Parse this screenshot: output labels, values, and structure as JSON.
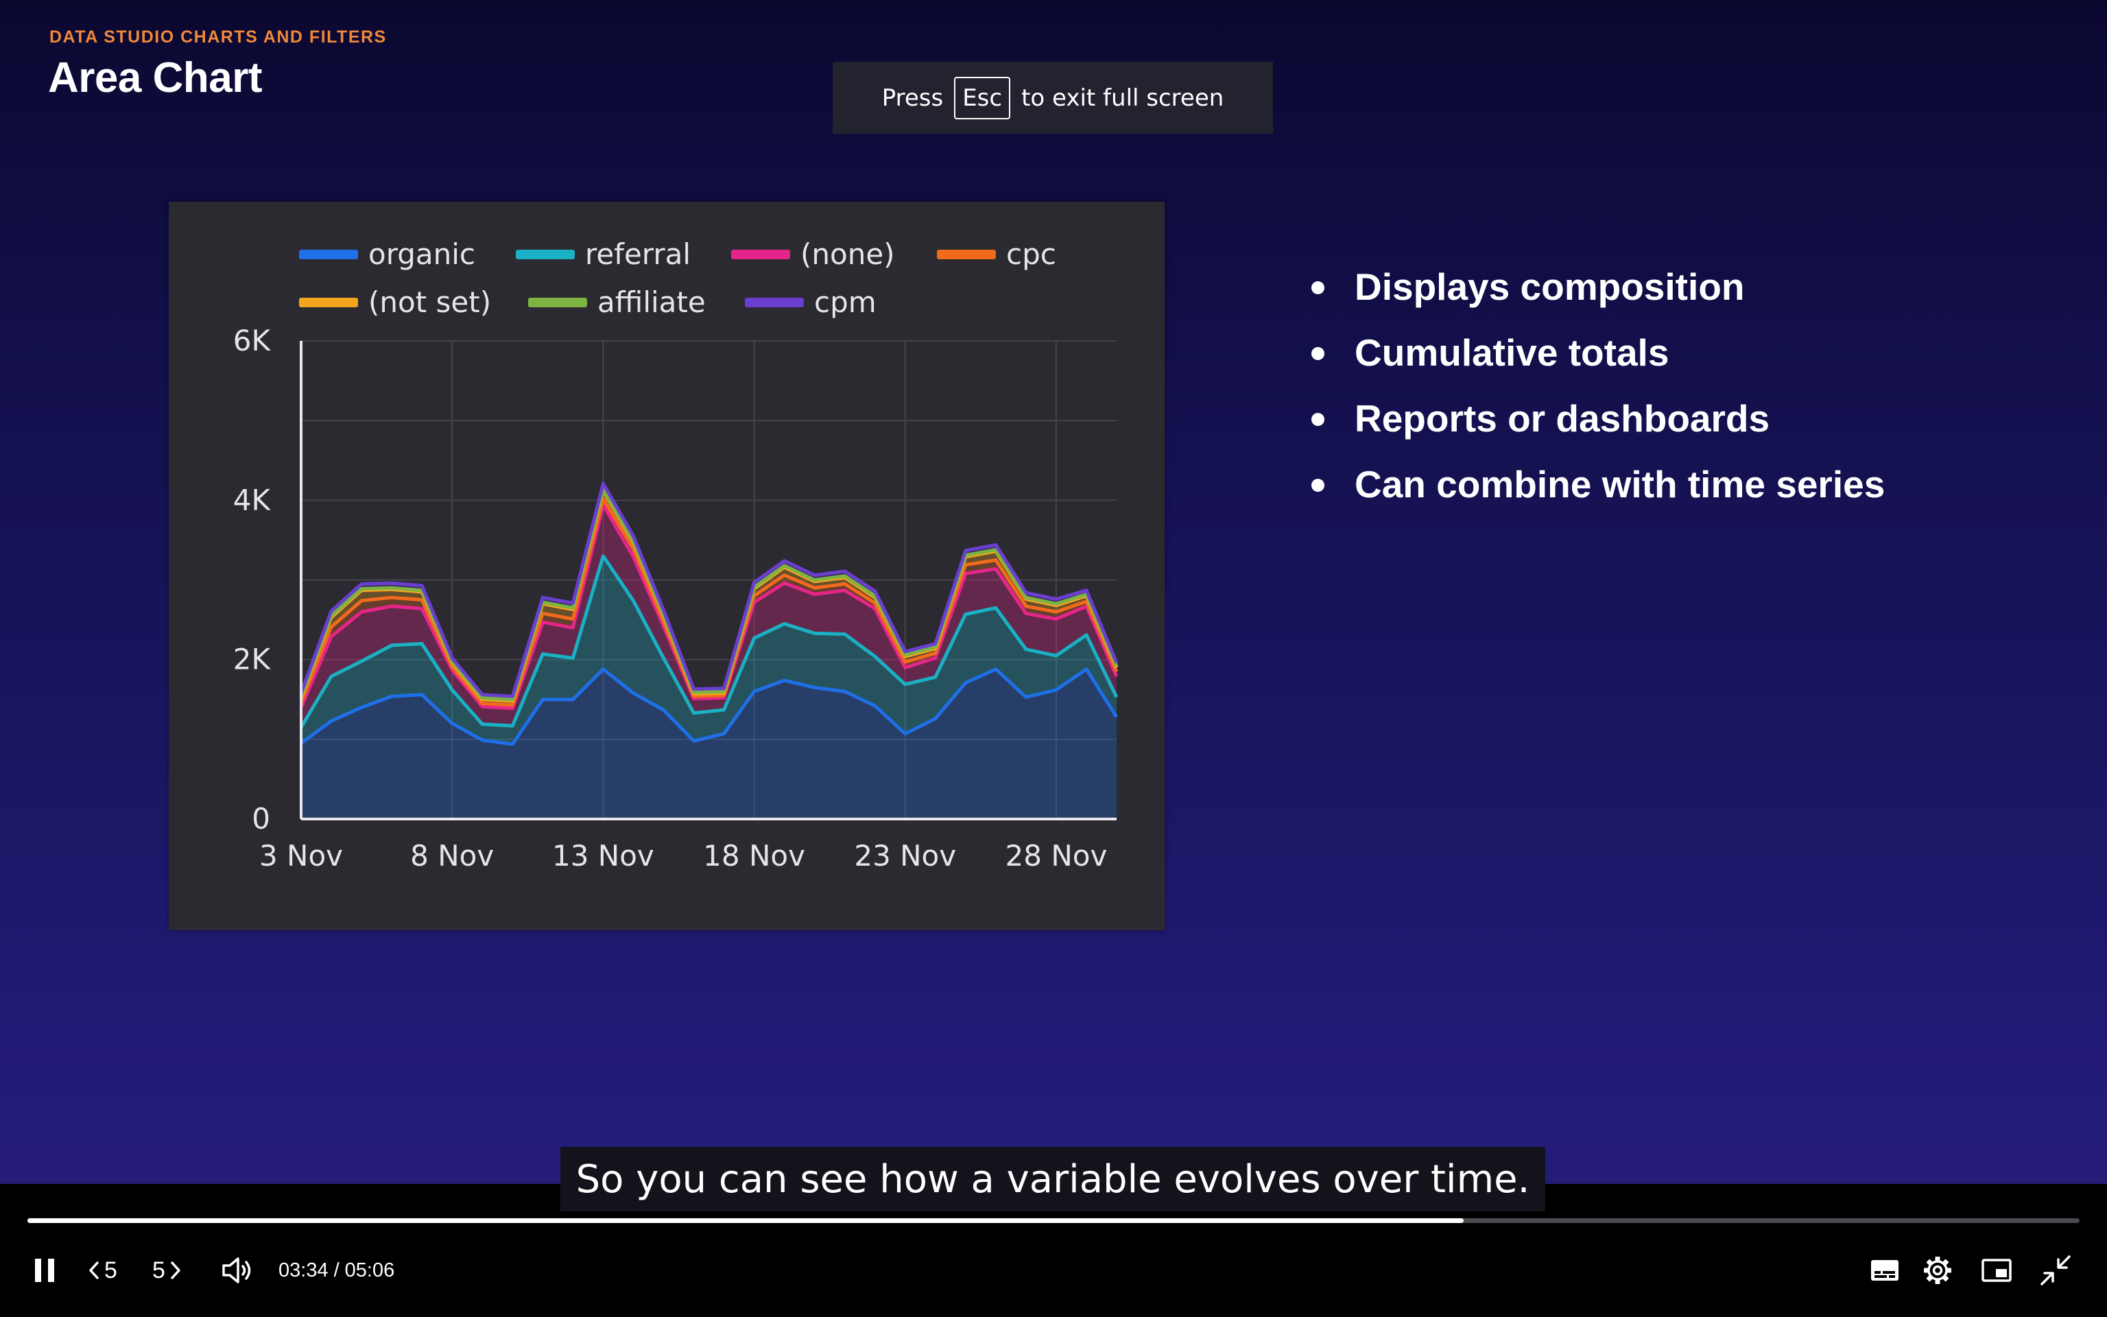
{
  "slide": {
    "kicker": "DATA STUDIO CHARTS AND FILTERS",
    "title": "Area Chart",
    "bullets": [
      "Displays composition",
      "Cumulative totals",
      "Reports or dashboards",
      "Can combine with time series"
    ]
  },
  "fullscreen_hint": {
    "before": "Press",
    "key": "Esc",
    "after": "to exit full screen"
  },
  "caption": "So you can see how a variable evolves over time.",
  "player": {
    "back_skip_label": "5",
    "forward_skip_label": "5",
    "current_time": "03:34",
    "separator": "/",
    "duration": "05:06",
    "progress": 0.7
  },
  "colors": {
    "accent_kicker": "#f0883a",
    "chart_background": "#2b2a31"
  },
  "icons": [
    "pause-icon",
    "skip-back-icon",
    "skip-forward-icon",
    "volume-icon",
    "subtitles-icon",
    "settings-icon",
    "picture-in-picture-icon",
    "exit-fullscreen-icon"
  ],
  "chart_data": {
    "type": "area",
    "stacked": true,
    "title": "",
    "xlabel": "",
    "ylabel": "",
    "ylim": [
      0,
      6000
    ],
    "yticks": [
      "0",
      "2K",
      "4K",
      "6K"
    ],
    "ytick_values": [
      0,
      2000,
      4000,
      6000
    ],
    "xticks": [
      "3 Nov",
      "8 Nov",
      "13 Nov",
      "18 Nov",
      "23 Nov",
      "28 Nov"
    ],
    "xtick_days": [
      3,
      8,
      13,
      18,
      23,
      28
    ],
    "x_day_range": [
      3,
      30
    ],
    "grid": true,
    "legend_position": "top",
    "days": [
      3,
      4,
      5,
      6,
      7,
      8,
      9,
      10,
      11,
      12,
      13,
      14,
      15,
      16,
      17,
      18,
      19,
      20,
      21,
      22,
      23,
      24,
      25,
      26,
      27,
      28,
      29,
      30
    ],
    "series": [
      {
        "name": "organic",
        "color": "#1f6fe8",
        "values": [
          950,
          1230,
          1400,
          1540,
          1560,
          1200,
          990,
          940,
          1500,
          1500,
          1880,
          1580,
          1370,
          980,
          1070,
          1600,
          1740,
          1650,
          1600,
          1420,
          1070,
          1260,
          1710,
          1880,
          1530,
          1620,
          1880,
          1280
        ]
      },
      {
        "name": "referral",
        "color": "#1ab1c4",
        "values": [
          200,
          560,
          580,
          640,
          640,
          420,
          200,
          230,
          570,
          520,
          1420,
          1160,
          650,
          350,
          300,
          670,
          710,
          680,
          720,
          620,
          620,
          520,
          860,
          770,
          600,
          430,
          430,
          250
        ]
      },
      {
        "name": "(none)",
        "color": "#e6258a",
        "values": [
          250,
          500,
          620,
          490,
          440,
          250,
          220,
          220,
          400,
          380,
          640,
          550,
          400,
          180,
          150,
          450,
          510,
          490,
          550,
          600,
          210,
          240,
          510,
          490,
          450,
          460,
          360,
          260
        ]
      },
      {
        "name": "cpc",
        "color": "#f26b1d",
        "values": [
          60,
          120,
          140,
          110,
          110,
          40,
          40,
          40,
          110,
          110,
          80,
          100,
          60,
          30,
          30,
          80,
          100,
          80,
          80,
          70,
          70,
          60,
          110,
          110,
          90,
          90,
          60,
          60
        ]
      },
      {
        "name": "(not set)",
        "color": "#f3a51f",
        "values": [
          60,
          120,
          130,
          100,
          100,
          50,
          50,
          50,
          120,
          120,
          100,
          80,
          70,
          30,
          30,
          90,
          100,
          80,
          80,
          70,
          70,
          60,
          100,
          110,
          90,
          80,
          70,
          50
        ]
      },
      {
        "name": "affiliate",
        "color": "#7cb342",
        "values": [
          20,
          20,
          20,
          20,
          20,
          20,
          20,
          20,
          20,
          20,
          20,
          20,
          20,
          20,
          20,
          20,
          20,
          20,
          20,
          20,
          20,
          20,
          20,
          20,
          20,
          20,
          20,
          20
        ]
      },
      {
        "name": "cpm",
        "color": "#6a3fd0",
        "values": [
          40,
          60,
          60,
          60,
          60,
          40,
          40,
          40,
          60,
          60,
          70,
          60,
          50,
          40,
          40,
          60,
          60,
          60,
          60,
          60,
          40,
          40,
          60,
          60,
          60,
          60,
          50,
          40
        ]
      }
    ]
  }
}
